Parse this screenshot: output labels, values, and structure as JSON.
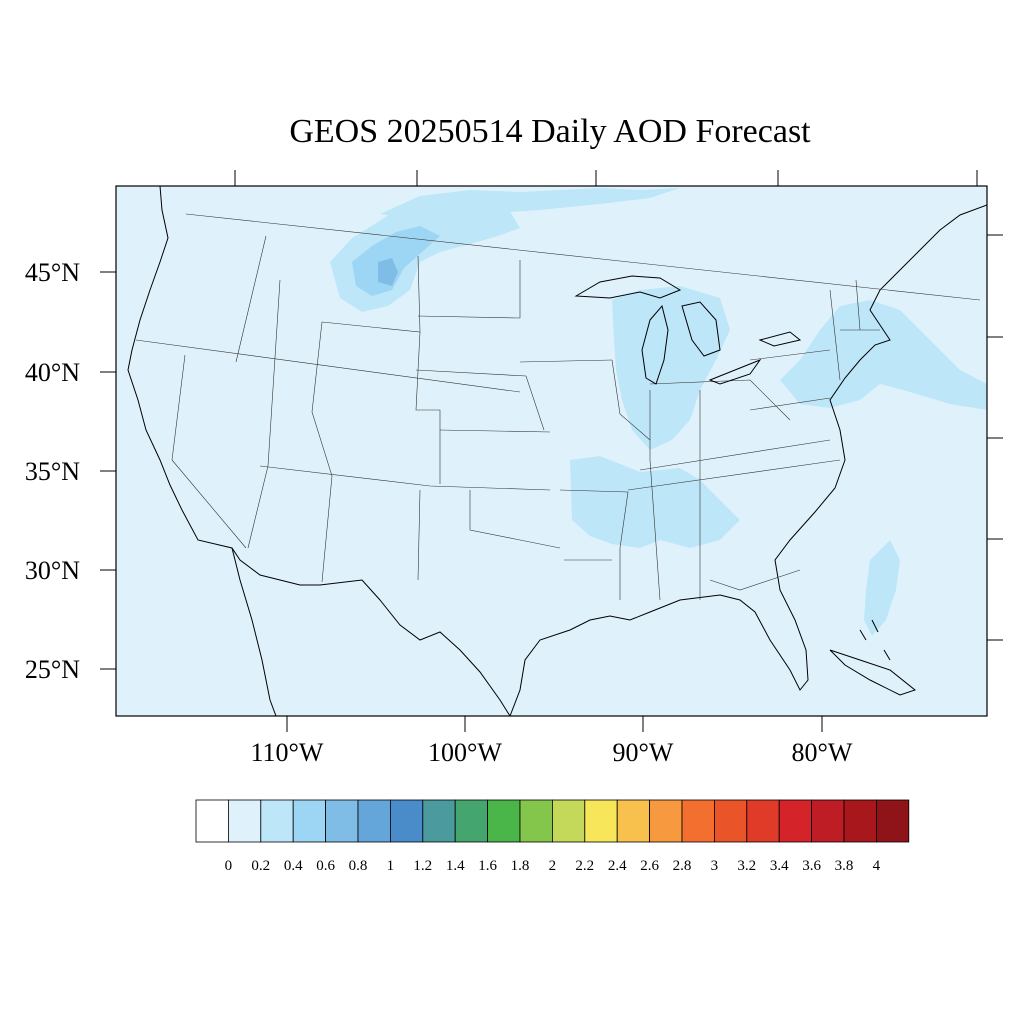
{
  "title": "GEOS 20250514 Daily AOD Forecast",
  "colors": {
    "ocean": "#dff2fb",
    "frame": "#000000"
  },
  "lat_labels": [
    "45°N",
    "40°N",
    "35°N",
    "30°N",
    "25°N"
  ],
  "lon_labels": [
    "110°W",
    "100°W",
    "90°W",
    "80°W"
  ],
  "colorbar": {
    "levels": [
      "0",
      "0.2",
      "0.4",
      "0.6",
      "0.8",
      "1",
      "1.2",
      "1.4",
      "1.6",
      "1.8",
      "2",
      "2.2",
      "2.4",
      "2.6",
      "2.8",
      "3",
      "3.2",
      "3.4",
      "3.6",
      "3.8",
      "4"
    ],
    "colors": [
      "#ffffff",
      "#dff2fb",
      "#bde6f8",
      "#9dd6f4",
      "#7fbde6",
      "#64a6d9",
      "#4a8bc9",
      "#4a9a9e",
      "#45a56f",
      "#4ab64a",
      "#84c54c",
      "#c4d85a",
      "#f7e65a",
      "#f8c04c",
      "#f79a3f",
      "#f36f30",
      "#ea5429",
      "#e03a28",
      "#d42329",
      "#bf1d25",
      "#a8171c",
      "#8f1419"
    ]
  }
}
